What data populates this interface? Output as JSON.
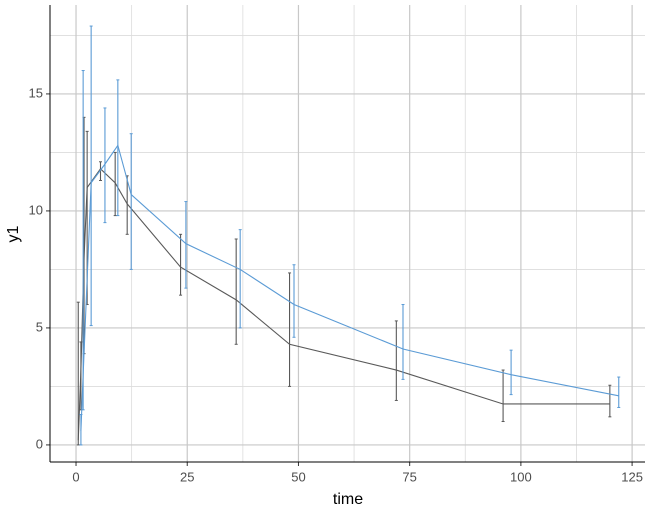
{
  "chart_data": {
    "type": "line-errorbar",
    "x_label": "time",
    "y_label": "y1",
    "xlim": [
      -5.85,
      127.9
    ],
    "ylim": [
      -0.73,
      18.8
    ],
    "xticks": [
      0,
      25,
      50,
      75,
      100,
      125
    ],
    "yticks": [
      0,
      5,
      10,
      15
    ],
    "grid": true,
    "minor_grid": true,
    "series": [
      {
        "color": "#595959",
        "x": [
          0.5,
          1.1,
          1.8,
          2.5,
          5.5,
          8.8,
          11.5,
          23.5,
          36,
          48,
          72,
          96,
          120
        ],
        "values": [
          0.2,
          3.2,
          8.0,
          11.0,
          11.8,
          11.2,
          10.3,
          7.6,
          6.2,
          4.3,
          3.2,
          1.75,
          1.75
        ],
        "ymin": [
          0,
          1.5,
          3.9,
          6.0,
          11.3,
          9.8,
          9.0,
          6.4,
          4.3,
          2.5,
          1.9,
          1.0,
          1.2
        ],
        "ymax": [
          6.1,
          4.4,
          14.0,
          13.4,
          12.1,
          12.5,
          11.5,
          9.0,
          8.8,
          7.35,
          5.3,
          3.2,
          2.55
        ]
      },
      {
        "color": "#5b9bd5",
        "x": [
          1.1,
          1.6,
          3.4,
          6.5,
          9.4,
          12.4,
          24.7,
          36.9,
          49,
          73.5,
          97.8,
          122
        ],
        "values": [
          0.6,
          3.0,
          11.2,
          12.0,
          12.8,
          10.7,
          8.6,
          7.5,
          6.0,
          4.1,
          3.0,
          2.1
        ],
        "ymin": [
          0,
          1.5,
          5.1,
          9.5,
          9.8,
          7.5,
          6.7,
          5.0,
          4.6,
          2.8,
          2.15,
          1.6
        ],
        "ymax": [
          1.3,
          16.0,
          17.9,
          14.4,
          15.6,
          13.3,
          10.4,
          9.2,
          7.7,
          6.0,
          4.05,
          2.9
        ]
      }
    ]
  }
}
